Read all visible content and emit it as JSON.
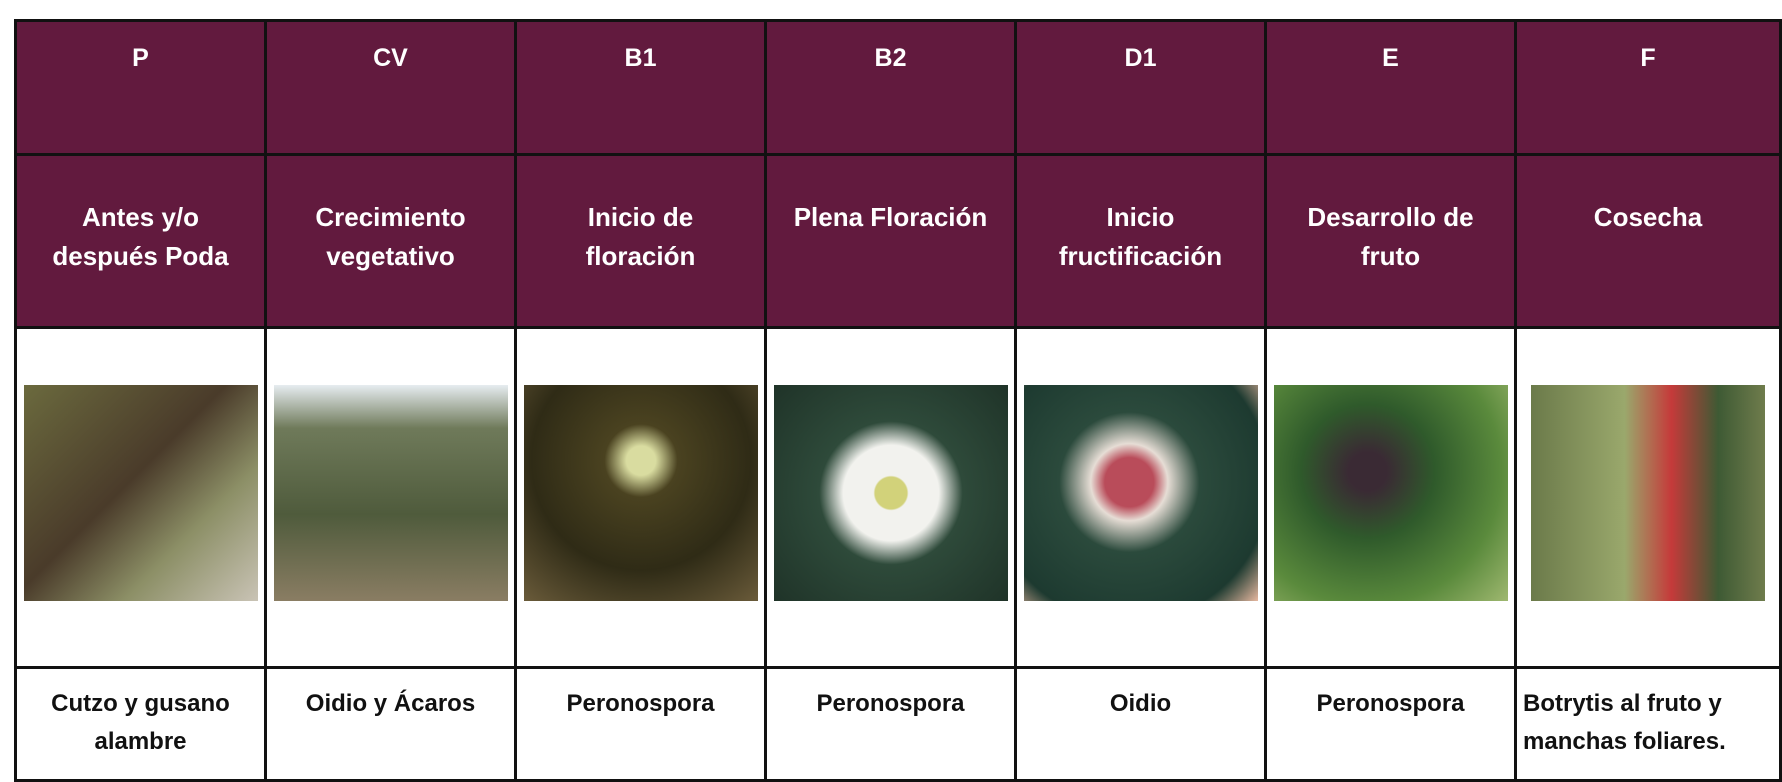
{
  "table": {
    "codes": [
      "P",
      "CV",
      "B1",
      "B2",
      "D1",
      "E",
      "F"
    ],
    "stages": [
      "Antes y/o después Poda",
      "Crecimiento vegetativo",
      "Inicio de floración",
      "Plena Floración",
      "Inicio fructificación",
      "Desarrollo de fruto",
      "Cosecha"
    ],
    "pests": [
      "Cutzo y gusano alambre",
      "Oidio y Ácaros",
      "Peronospora",
      "Peronospora",
      "Oidio",
      "Peronospora",
      "Botrytis al fruto y manchas foliares."
    ]
  }
}
